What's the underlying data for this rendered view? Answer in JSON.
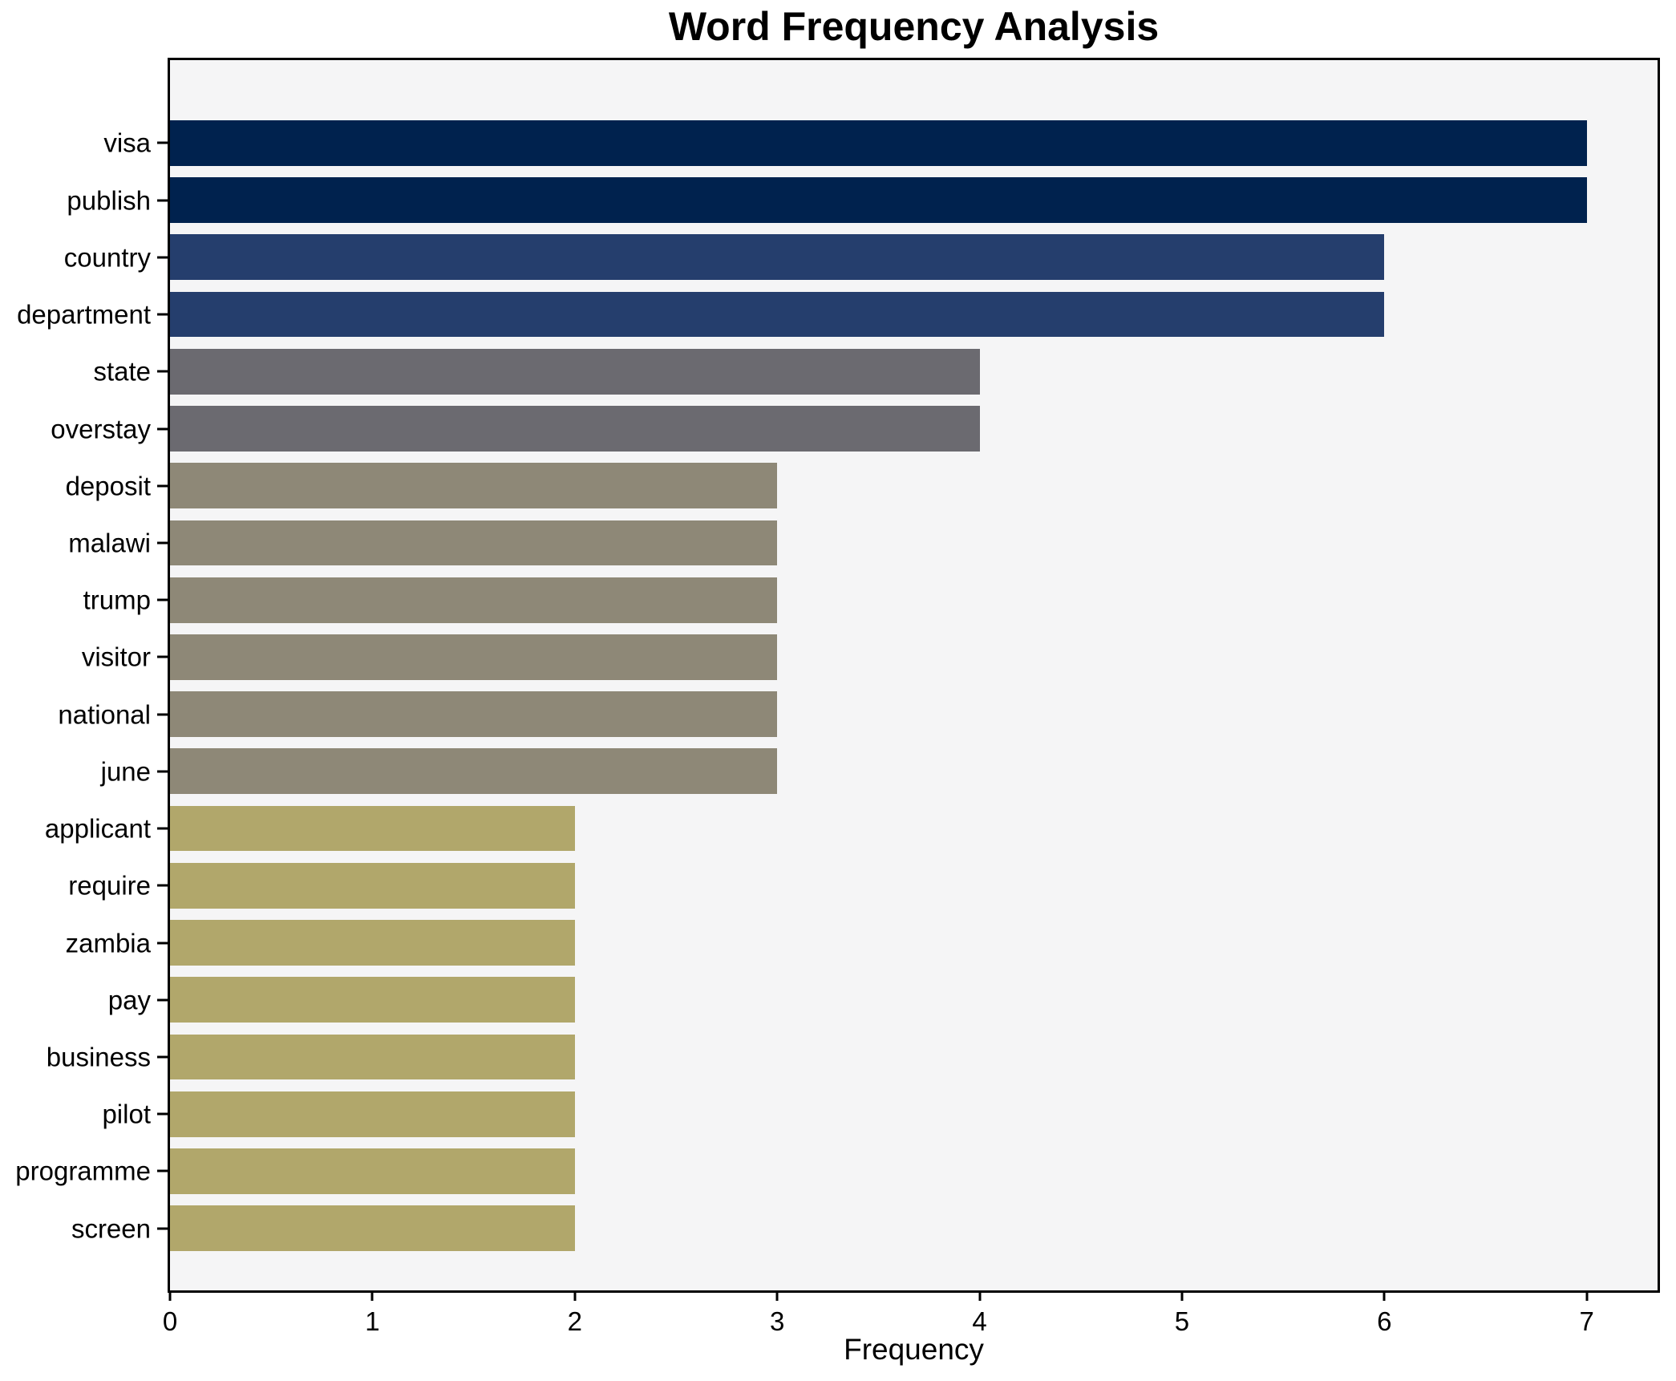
{
  "chart_data": {
    "type": "bar",
    "orientation": "horizontal",
    "title": "Word Frequency Analysis",
    "xlabel": "Frequency",
    "ylabel": "",
    "categories": [
      "visa",
      "publish",
      "country",
      "department",
      "state",
      "overstay",
      "deposit",
      "malawi",
      "trump",
      "visitor",
      "national",
      "june",
      "applicant",
      "require",
      "zambia",
      "pay",
      "business",
      "pilot",
      "programme",
      "screen"
    ],
    "values": [
      7,
      7,
      6,
      6,
      4,
      4,
      3,
      3,
      3,
      3,
      3,
      3,
      2,
      2,
      2,
      2,
      2,
      2,
      2,
      2
    ],
    "colors": [
      "#00224e",
      "#00224e",
      "#253e6d",
      "#253e6d",
      "#6b6a70",
      "#6b6a70",
      "#8e8877",
      "#8e8877",
      "#8e8877",
      "#8e8877",
      "#8e8877",
      "#8e8877",
      "#b1a76b",
      "#b1a76b",
      "#b1a76b",
      "#b1a76b",
      "#b1a76b",
      "#b1a76b",
      "#b1a76b",
      "#b1a76b"
    ],
    "xlim": [
      0,
      7.35
    ],
    "x_ticks": [
      0,
      1,
      2,
      3,
      4,
      5,
      6,
      7
    ],
    "grid": false,
    "legend": null,
    "plot_background": "#f5f5f6",
    "figure_background": "#ffffff",
    "title_color": "#000000",
    "axis_color": "#000000"
  }
}
